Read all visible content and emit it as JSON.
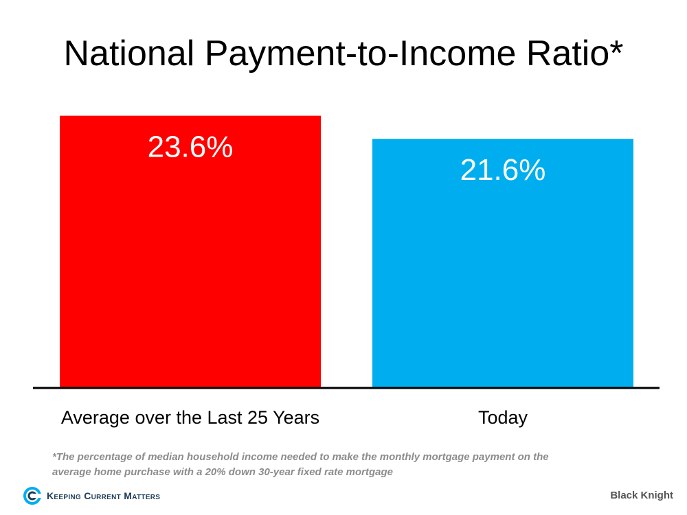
{
  "title": "National Payment-to-Income Ratio*",
  "chart_data": {
    "type": "bar",
    "categories": [
      "Average over the Last 25 Years",
      "Today"
    ],
    "values": [
      23.6,
      21.6
    ],
    "value_labels": [
      "23.6%",
      "21.6%"
    ],
    "colors": [
      "#ff0000",
      "#00aeef"
    ],
    "ylim": [
      0,
      25.6
    ],
    "grid": false,
    "legend": "none"
  },
  "footnote": "*The percentage of median household income needed to make the monthly mortgage payment on the average home purchase with a 20% down 30-year fixed rate mortgage",
  "brand": "Keeping Current Matters",
  "source": "Black Knight"
}
